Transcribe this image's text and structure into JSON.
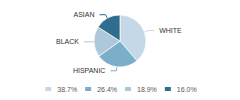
{
  "chart_data": {
    "type": "pie",
    "categories": [
      "WHITE",
      "HISPANIC",
      "BLACK",
      "ASIAN"
    ],
    "values": [
      38.7,
      26.4,
      18.9,
      16.0
    ],
    "value_labels": [
      "38.7%",
      "26.4%",
      "18.9%",
      "16.0%"
    ],
    "colors": [
      "#c5d8e8",
      "#7baec9",
      "#adc8db",
      "#2e6d8e"
    ],
    "legend": "bottom"
  }
}
